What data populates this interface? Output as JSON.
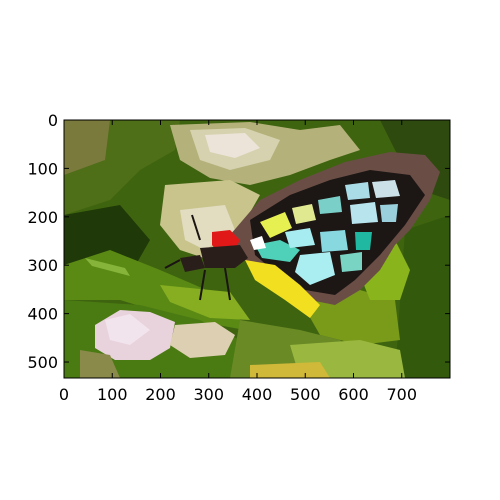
{
  "figure": {
    "description": "",
    "background": "#ffffff"
  },
  "chart_data": {
    "type": "image",
    "title": "",
    "xlabel": "",
    "ylabel": "",
    "x_ticks": [
      0,
      100,
      200,
      300,
      400,
      500,
      600,
      700
    ],
    "y_ticks": [
      0,
      100,
      200,
      300,
      400,
      500
    ],
    "xlim": [
      0,
      800
    ],
    "ylim": [
      533,
      0
    ],
    "y_axis_inverted": true,
    "grid": false
  },
  "colors": {
    "frame": "#000000",
    "tick_text": "#000000",
    "dark_green": "#2d4a0c",
    "mid_green": "#4f7a12",
    "bright_green": "#7fa81a",
    "olive": "#8a8a3a",
    "beige": "#d8d0a8",
    "cream": "#ece4cc",
    "pink_flower": "#eed8e0",
    "wing_brown": "#6b5048",
    "wing_black": "#1a1412",
    "teal": "#4fd0b8",
    "cyan": "#a8e8f0",
    "yellow": "#f2e020",
    "red": "#e01818"
  }
}
